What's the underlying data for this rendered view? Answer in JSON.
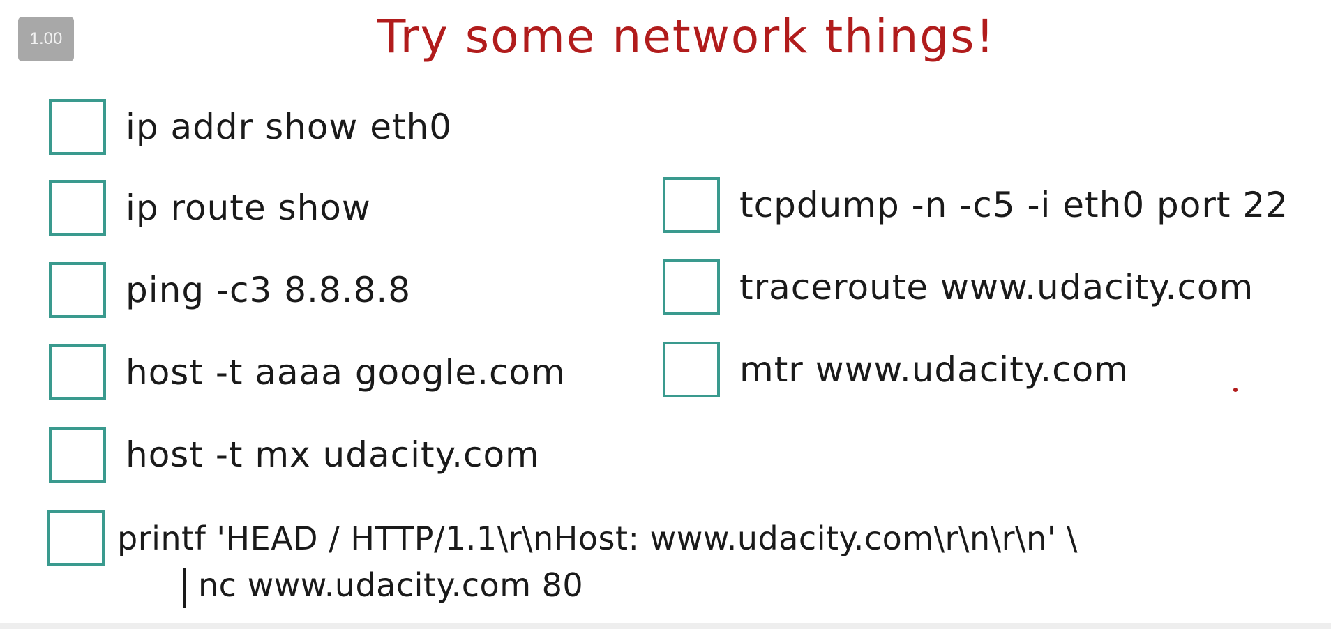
{
  "player": {
    "speed_label": "1.00"
  },
  "title": "Try some network things!",
  "checklist": {
    "left": [
      "ip addr show eth0",
      "ip route show",
      "ping -c3 8.8.8.8",
      "host -t aaaa google.com",
      "host -t mx udacity.com"
    ],
    "right": [
      "tcpdump -n -c5 -i eth0 port 22",
      "traceroute www.udacity.com",
      "mtr www.udacity.com"
    ],
    "bottom": {
      "line1": "printf 'HEAD / HTTP/1.1\\r\\nHost: www.udacity.com\\r\\n\\r\\n' \\",
      "line2": "nc www.udacity.com 80"
    }
  },
  "colors": {
    "title": "#b11c1c",
    "checkbox_border": "#3a9a8e",
    "badge_bg": "#a8a8a8"
  }
}
